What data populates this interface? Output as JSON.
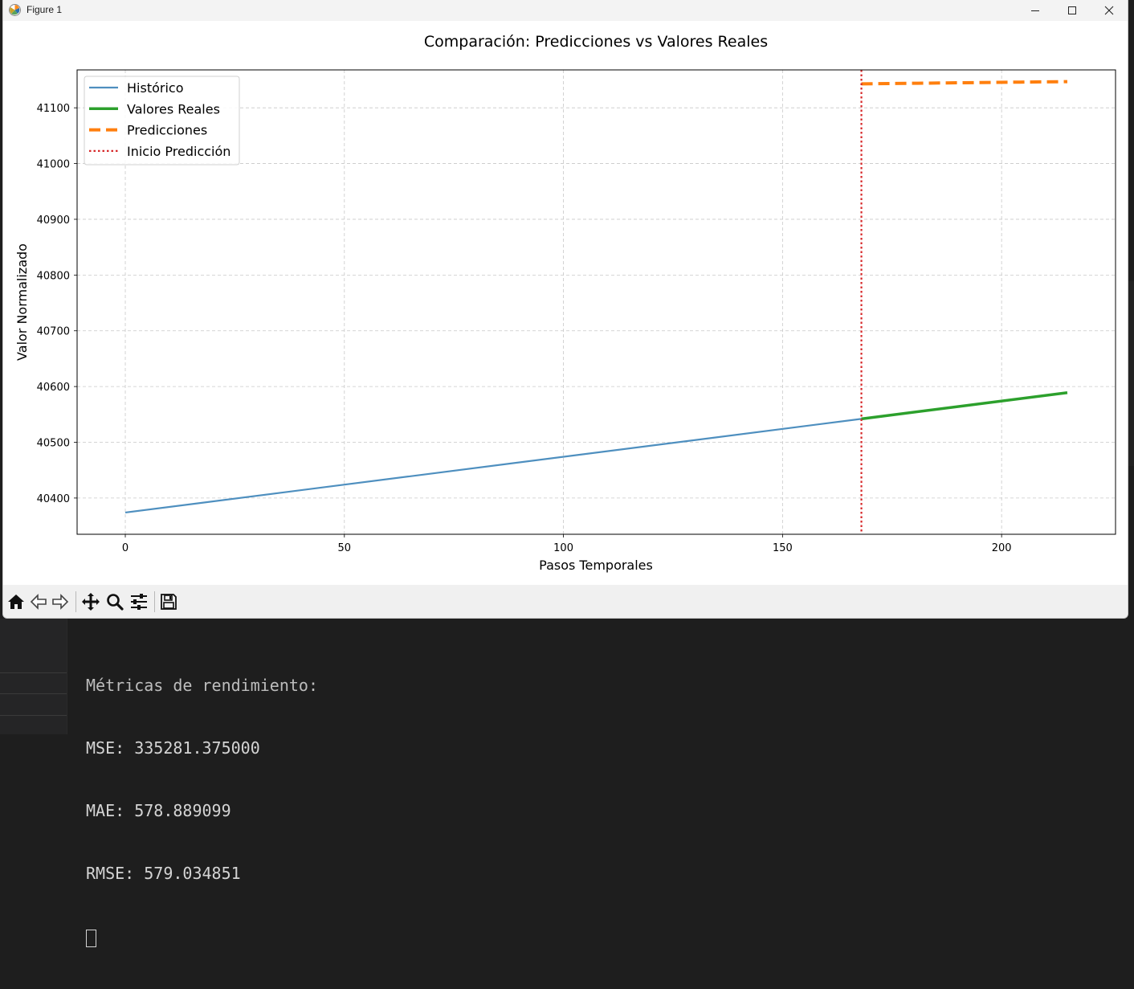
{
  "window": {
    "title": "Figure 1",
    "icon": "matplotlib-icon",
    "controls": [
      "minimize-icon",
      "maximize-icon",
      "close-icon"
    ]
  },
  "toolbar": {
    "buttons": [
      "home-icon",
      "back-icon",
      "forward-icon",
      "pan-icon",
      "zoom-icon",
      "configure-subplots-icon",
      "save-icon"
    ]
  },
  "chart_data": {
    "type": "line",
    "title": "Comparación: Predicciones vs Valores Reales",
    "xlabel": "Pasos Temporales",
    "ylabel": "Valor Normalizado",
    "xlim": [
      -11,
      226
    ],
    "ylim": [
      40335,
      41168
    ],
    "xticks": [
      0,
      50,
      100,
      150,
      200
    ],
    "yticks": [
      40400,
      40500,
      40600,
      40700,
      40800,
      40900,
      41000,
      41100
    ],
    "grid": true,
    "legend_position": "upper-left",
    "series": [
      {
        "name": "Histórico",
        "color": "#4e8fbf",
        "style": "solid",
        "x": [
          0,
          168
        ],
        "y": [
          40374,
          40542
        ]
      },
      {
        "name": "Valores Reales",
        "color": "#2ca02c",
        "style": "solid",
        "x": [
          168,
          215
        ],
        "y": [
          40542,
          40589
        ]
      },
      {
        "name": "Predicciones",
        "color": "#ff7f0e",
        "style": "dashed",
        "x": [
          168,
          215
        ],
        "y": [
          41143,
          41147
        ]
      },
      {
        "name": "Inicio Predicción",
        "color": "#d62728",
        "style": "dotted",
        "vline_x": 168
      }
    ]
  },
  "terminal": {
    "lines": [
      "Métricas de rendimiento:",
      "MSE: 335281.375000",
      "MAE: 578.889099",
      "RMSE: 579.034851"
    ]
  }
}
